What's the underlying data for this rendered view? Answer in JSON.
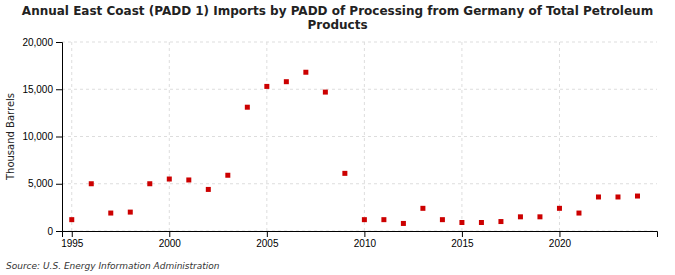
{
  "chart_data": {
    "type": "scatter",
    "title": "Annual East Coast (PADD 1) Imports by PADD of Processing from Germany of Total Petroleum\nProducts",
    "y_label": "Thousand Barrels",
    "source": "Source: U.S. Energy Information Administration",
    "color": "#cc0000",
    "marker": "square",
    "x": [
      1995,
      1996,
      1997,
      1998,
      1999,
      2000,
      2001,
      2002,
      2003,
      2004,
      2005,
      2006,
      2007,
      2008,
      2009,
      2010,
      2011,
      2012,
      2013,
      2014,
      2015,
      2016,
      2017,
      2018,
      2019,
      2020,
      2021,
      2022,
      2023,
      2024
    ],
    "values": [
      1200,
      5000,
      1900,
      2000,
      5000,
      5500,
      5400,
      4400,
      5900,
      13100,
      15300,
      15800,
      16800,
      14700,
      6100,
      1200,
      1200,
      800,
      2400,
      1200,
      900,
      900,
      1000,
      1500,
      1500,
      2400,
      1900,
      3600,
      3600,
      3700
    ],
    "xlim": [
      1994.5,
      2025
    ],
    "ylim": [
      0,
      20000
    ],
    "xticks": [
      1995,
      2000,
      2005,
      2010,
      2015,
      2020
    ],
    "yticks": [
      0,
      {
        "value": 5000,
        "label": "5,000"
      },
      {
        "value": 10000,
        "label": "10,000"
      },
      {
        "value": 15000,
        "label": "15,000"
      },
      {
        "value": 20000,
        "label": "20,000"
      }
    ],
    "grid": true
  }
}
